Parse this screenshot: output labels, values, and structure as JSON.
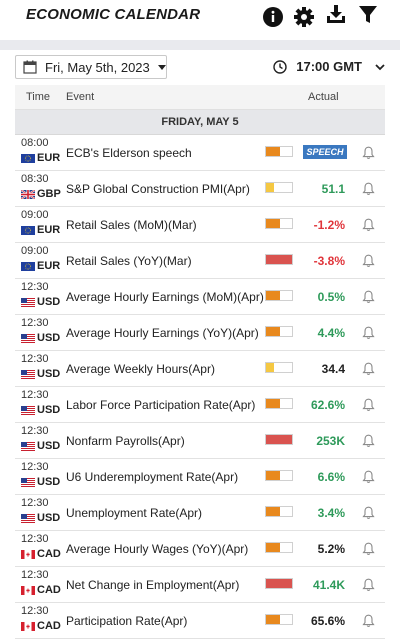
{
  "header": {
    "title": "ECONOMIC CALENDAR",
    "icons": [
      "info-icon",
      "gear-icon",
      "download-icon",
      "filter-icon"
    ]
  },
  "controls": {
    "date": "Fri, May 5th, 2023",
    "timezone": "17:00 GMT"
  },
  "table": {
    "columns": {
      "time": "Time",
      "event": "Event",
      "actual": "Actual"
    },
    "day_label": "FRIDAY, MAY 5",
    "colors": {
      "impact_high": "#d9534f",
      "impact_medium": "#e8891e",
      "impact_low": "#f5c842",
      "positive": "#2e9a5a",
      "negative": "#e0353b",
      "neutral": "#222222",
      "speech": "#3a78c0"
    },
    "rows": [
      {
        "time": "08:00",
        "currency": "EUR",
        "flag": "eu-flag",
        "event": "ECB's Elderson speech",
        "impact": "medium",
        "actual": "SPEECH",
        "tone": "speech"
      },
      {
        "time": "08:30",
        "currency": "GBP",
        "flag": "uk-flag",
        "event": "S&P Global Construction PMI(Apr)",
        "impact": "low",
        "actual": "51.1",
        "tone": "positive"
      },
      {
        "time": "09:00",
        "currency": "EUR",
        "flag": "eu-flag",
        "event": "Retail Sales (MoM)(Mar)",
        "impact": "medium",
        "actual": "-1.2%",
        "tone": "negative"
      },
      {
        "time": "09:00",
        "currency": "EUR",
        "flag": "eu-flag",
        "event": "Retail Sales (YoY)(Mar)",
        "impact": "high",
        "actual": "-3.8%",
        "tone": "negative"
      },
      {
        "time": "12:30",
        "currency": "USD",
        "flag": "us-flag",
        "event": "Average Hourly Earnings (MoM)(Apr)",
        "impact": "medium",
        "actual": "0.5%",
        "tone": "positive"
      },
      {
        "time": "12:30",
        "currency": "USD",
        "flag": "us-flag",
        "event": "Average Hourly Earnings (YoY)(Apr)",
        "impact": "medium",
        "actual": "4.4%",
        "tone": "positive"
      },
      {
        "time": "12:30",
        "currency": "USD",
        "flag": "us-flag",
        "event": "Average Weekly Hours(Apr)",
        "impact": "low",
        "actual": "34.4",
        "tone": "neutral"
      },
      {
        "time": "12:30",
        "currency": "USD",
        "flag": "us-flag",
        "event": "Labor Force Participation Rate(Apr)",
        "impact": "medium",
        "actual": "62.6%",
        "tone": "positive"
      },
      {
        "time": "12:30",
        "currency": "USD",
        "flag": "us-flag",
        "event": "Nonfarm Payrolls(Apr)",
        "impact": "high",
        "actual": "253K",
        "tone": "positive"
      },
      {
        "time": "12:30",
        "currency": "USD",
        "flag": "us-flag",
        "event": "U6 Underemployment Rate(Apr)",
        "impact": "medium",
        "actual": "6.6%",
        "tone": "positive"
      },
      {
        "time": "12:30",
        "currency": "USD",
        "flag": "us-flag",
        "event": "Unemployment Rate(Apr)",
        "impact": "medium",
        "actual": "3.4%",
        "tone": "positive"
      },
      {
        "time": "12:30",
        "currency": "CAD",
        "flag": "ca-flag",
        "event": "Average Hourly Wages (YoY)(Apr)",
        "impact": "medium",
        "actual": "5.2%",
        "tone": "neutral"
      },
      {
        "time": "12:30",
        "currency": "CAD",
        "flag": "ca-flag",
        "event": "Net Change in Employment(Apr)",
        "impact": "high",
        "actual": "41.4K",
        "tone": "positive"
      },
      {
        "time": "12:30",
        "currency": "CAD",
        "flag": "ca-flag",
        "event": "Participation Rate(Apr)",
        "impact": "medium",
        "actual": "65.6%",
        "tone": "neutral"
      }
    ]
  }
}
